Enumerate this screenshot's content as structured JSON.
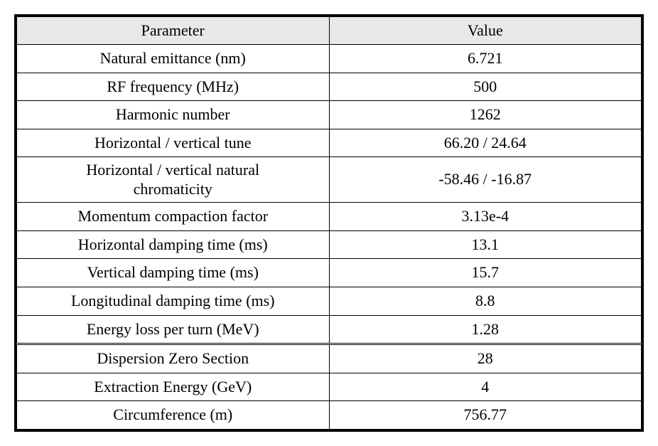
{
  "table": {
    "headers": {
      "parameter": "Parameter",
      "value": "Value"
    },
    "rows": [
      {
        "parameter": "Natural emittance (nm)",
        "value": "6.721",
        "multiline": false,
        "separator": false
      },
      {
        "parameter": "RF frequency (MHz)",
        "value": "500",
        "multiline": false,
        "separator": false
      },
      {
        "parameter": "Harmonic number",
        "value": "1262",
        "multiline": false,
        "separator": false
      },
      {
        "parameter": "Horizontal / vertical tune",
        "value": "66.20 / 24.64",
        "multiline": false,
        "separator": false
      },
      {
        "parameter": "Horizontal / vertical natural\nchromaticity",
        "value": "-58.46 / -16.87",
        "multiline": true,
        "separator": false
      },
      {
        "parameter": "Momentum compaction factor",
        "value": "3.13e-4",
        "multiline": false,
        "separator": false
      },
      {
        "parameter": "Horizontal damping time (ms)",
        "value": "13.1",
        "multiline": false,
        "separator": false
      },
      {
        "parameter": "Vertical damping time (ms)",
        "value": "15.7",
        "multiline": false,
        "separator": false
      },
      {
        "parameter": "Longitudinal damping time (ms)",
        "value": "8.8",
        "multiline": false,
        "separator": false
      },
      {
        "parameter": "Energy loss per turn (MeV)",
        "value": "1.28",
        "multiline": false,
        "separator": false
      },
      {
        "parameter": "Dispersion Zero Section",
        "value": "28",
        "multiline": false,
        "separator": true
      },
      {
        "parameter": "Extraction Energy (GeV)",
        "value": "4",
        "multiline": false,
        "separator": false
      },
      {
        "parameter": "Circumference (m)",
        "value": "756.77",
        "multiline": false,
        "separator": false
      }
    ],
    "styling": {
      "header_bg": "#e8e8e8",
      "border_color": "#000000",
      "outer_border_width": 3,
      "inner_border_width": 1,
      "font_size": 22,
      "font_family": "Georgia, Times New Roman, serif",
      "text_align": "center"
    }
  }
}
